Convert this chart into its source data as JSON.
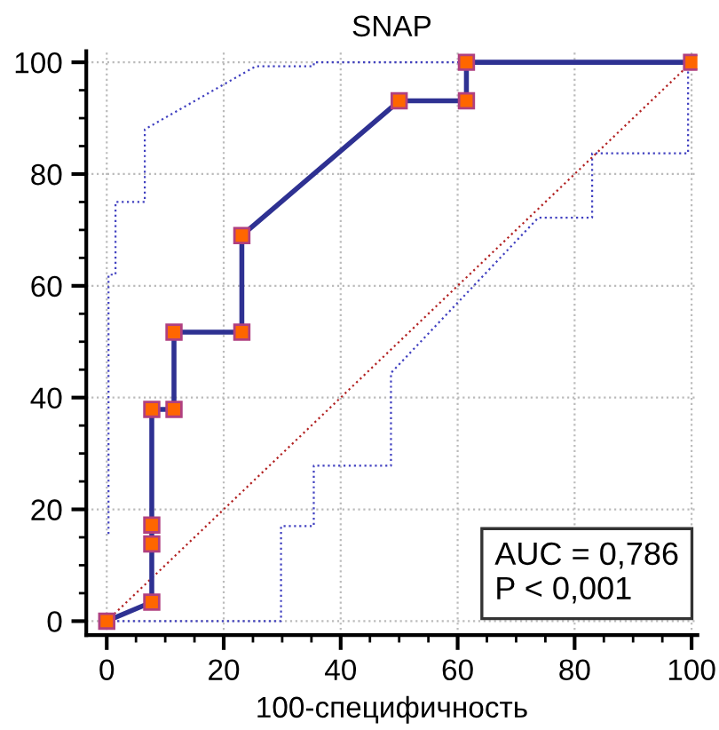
{
  "chart_data": {
    "type": "line",
    "title": "SNAP",
    "xlabel": "100-специфичность",
    "series": [
      {
        "color": "#4040c0",
        "line_style": "dotted",
        "marker": "none",
        "x": [
          0.3,
          0.3,
          1.5,
          1.5,
          6.5,
          6.5,
          25.5,
          35.4,
          35.4,
          100
        ],
        "values": [
          15.6,
          62,
          62,
          75,
          75,
          88,
          99.3,
          99.3,
          100,
          100
        ]
      },
      {
        "color": "#4040c0",
        "line_style": "dotted",
        "marker": "none",
        "x": [
          0,
          29.8,
          29.8,
          35.4,
          35.4,
          48.6,
          48.6,
          73.8,
          83,
          83,
          99.4,
          99.4
        ],
        "values": [
          0,
          0,
          17,
          17,
          27.8,
          27.8,
          44.4,
          72.2,
          72.2,
          83.7,
          83.7,
          100
        ]
      },
      {
        "color": "#b22222",
        "line_style": "dotted",
        "marker": "none",
        "x": [
          0,
          100
        ],
        "values": [
          0,
          100
        ]
      },
      {
        "color": "#2e3192",
        "line_style": "solid",
        "marker": "square",
        "x": [
          0,
          7.7,
          7.7,
          7.7,
          7.7,
          11.5,
          11.5,
          23.1,
          23.1,
          50,
          61.5,
          61.5,
          100
        ],
        "values": [
          0,
          3.4,
          13.8,
          17.2,
          37.9,
          37.9,
          51.7,
          51.7,
          69,
          93.1,
          93.1,
          100,
          100
        ]
      }
    ],
    "xlim": [
      -3.5,
      101
    ],
    "ylim": [
      -2.5,
      102
    ],
    "xticks": [
      0,
      20,
      40,
      60,
      80,
      100
    ],
    "yticks": [
      0,
      20,
      40,
      60,
      80,
      100
    ],
    "grid": true,
    "annotations": [
      "AUC = 0,786",
      "P < 0,001"
    ]
  }
}
